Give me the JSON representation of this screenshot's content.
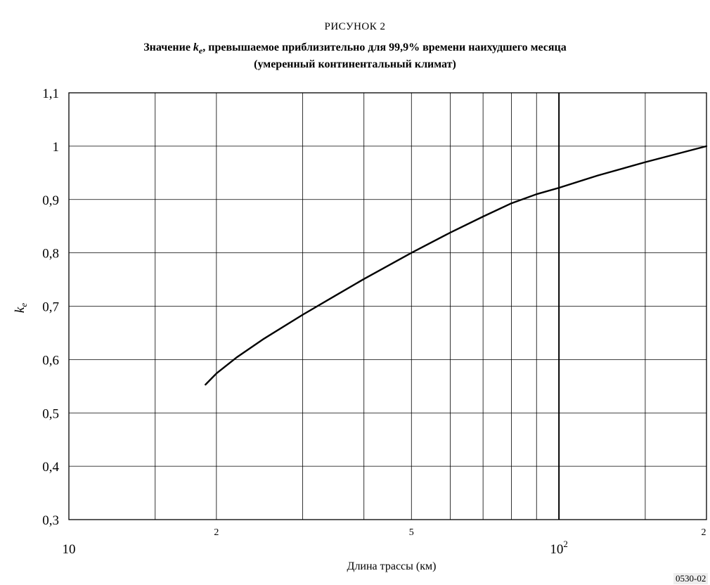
{
  "figure": {
    "label": "РИСУНОК 2",
    "title_prefix": "Значение ",
    "title_symbol": "k",
    "title_symbol_sub": "e",
    "title_rest": ", превышаемое приблизительно для 99,9% времени наихудшего месяца",
    "title_line2": "(умеренный континентальный климат)",
    "id": "0530-02"
  },
  "chart_data": {
    "type": "line",
    "title": "Значение ke, превышаемое приблизительно для 99,9% времени наихудшего месяца (умеренный континентальный климат)",
    "xlabel": "Длина трассы (км)",
    "ylabel_symbol": "k",
    "ylabel_sub": "e",
    "x_scale": "log",
    "xlim": [
      10,
      200
    ],
    "ylim": [
      0.3,
      1.1
    ],
    "grid": true,
    "y_ticks": [
      {
        "value": 0.3,
        "label": "0,3"
      },
      {
        "value": 0.4,
        "label": "0,4"
      },
      {
        "value": 0.5,
        "label": "0,5"
      },
      {
        "value": 0.6,
        "label": "0,6"
      },
      {
        "value": 0.7,
        "label": "0,7"
      },
      {
        "value": 0.8,
        "label": "0,8"
      },
      {
        "value": 0.9,
        "label": "0,9"
      },
      {
        "value": 1.0,
        "label": "1"
      },
      {
        "value": 1.1,
        "label": "1,1"
      }
    ],
    "x_ticks": [
      {
        "value": 20,
        "label": "2"
      },
      {
        "value": 50,
        "label": "5"
      },
      {
        "value": 200,
        "label": "2"
      }
    ],
    "x_decade_labels": [
      {
        "value": 10,
        "label": "10"
      },
      {
        "value": 100,
        "label": "10",
        "sup": "2"
      }
    ],
    "x_gridlines": [
      15,
      20,
      30,
      40,
      50,
      60,
      70,
      80,
      90,
      100,
      150,
      200
    ],
    "series": [
      {
        "x": [
          19,
          20,
          22,
          25,
          30,
          35,
          40,
          50,
          60,
          70,
          80,
          90,
          100,
          120,
          150,
          200
        ],
        "y": [
          0.553,
          0.574,
          0.604,
          0.639,
          0.684,
          0.72,
          0.751,
          0.8,
          0.838,
          0.868,
          0.893,
          0.91,
          0.922,
          0.945,
          0.97,
          1.0
        ]
      }
    ]
  }
}
